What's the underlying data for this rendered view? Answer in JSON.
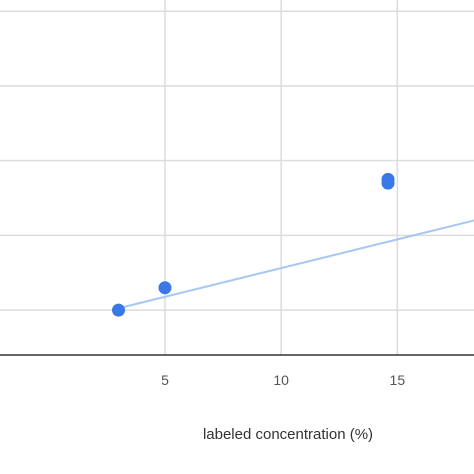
{
  "chart_data": {
    "type": "scatter",
    "xlabel": "labeled concentration (%)",
    "ylabel": "",
    "xlim": [
      -2.1,
      18.3
    ],
    "ylim": [
      -1.2,
      8.3
    ],
    "x_ticks": [
      5,
      10,
      15
    ],
    "y_gridlines": [
      0,
      2,
      4,
      6,
      8
    ],
    "grid": true,
    "series": [
      {
        "points": [
          {
            "x": 3,
            "y": 0
          },
          {
            "x": 5,
            "y": 0.6
          },
          {
            "x": 14.6,
            "y": 3.4
          },
          {
            "x": 14.6,
            "y": 3.5
          }
        ],
        "color": "#3b78e7"
      }
    ],
    "trendline": {
      "points": [
        {
          "x": 3,
          "y": 0.05
        },
        {
          "x": 18.3,
          "y": 2.4
        }
      ],
      "color": "#a8c7f5"
    }
  }
}
